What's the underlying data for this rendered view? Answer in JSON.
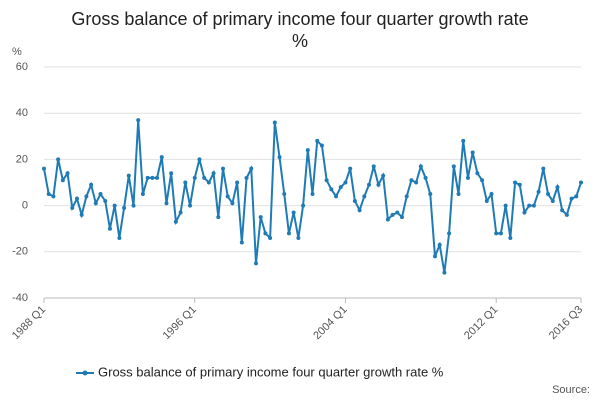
{
  "chart_data": {
    "type": "line",
    "title": "Gross balance of primary income four quarter growth rate",
    "subtitle": "%",
    "y_label": "%",
    "source": "Source:",
    "categories": [
      "1988 Q1",
      null,
      null,
      null,
      null,
      null,
      null,
      null,
      null,
      null,
      null,
      null,
      null,
      null,
      null,
      null,
      null,
      null,
      null,
      null,
      null,
      null,
      null,
      null,
      null,
      null,
      null,
      null,
      null,
      null,
      null,
      null,
      "1996 Q1",
      null,
      null,
      null,
      null,
      null,
      null,
      null,
      null,
      null,
      null,
      null,
      null,
      null,
      null,
      null,
      null,
      null,
      null,
      null,
      null,
      null,
      null,
      null,
      null,
      null,
      null,
      null,
      null,
      null,
      null,
      null,
      "2004 Q1",
      null,
      null,
      null,
      null,
      null,
      null,
      null,
      null,
      null,
      null,
      null,
      null,
      null,
      null,
      null,
      null,
      null,
      null,
      null,
      null,
      null,
      null,
      null,
      null,
      null,
      null,
      null,
      null,
      null,
      null,
      null,
      "2012 Q1",
      null,
      null,
      null,
      null,
      null,
      null,
      null,
      null,
      null,
      null,
      null,
      null,
      null,
      null,
      null,
      null,
      null,
      "2016 Q3"
    ],
    "series": [
      {
        "name": "Gross balance of primary income four quarter growth rate %",
        "color": "#1f7bb6",
        "values": [
          16,
          5,
          4,
          20,
          11,
          14,
          -1,
          3,
          -4,
          4,
          9,
          1,
          5,
          2,
          -10,
          0,
          -14,
          -1,
          13,
          0,
          37,
          5,
          12,
          12,
          12,
          21,
          1,
          14,
          -7,
          -3,
          10,
          0,
          12,
          20,
          12,
          10,
          14,
          -5,
          16,
          4,
          1,
          10,
          -16,
          12,
          16,
          -25,
          -5,
          -12,
          -14,
          36,
          21,
          5,
          -12,
          -3,
          -14,
          0,
          24,
          5,
          28,
          26,
          11,
          7,
          4,
          8,
          10,
          16,
          2,
          -2,
          4,
          9,
          17,
          9,
          13,
          -6,
          -4,
          -3,
          -5,
          4,
          11,
          10,
          17,
          12,
          5,
          -22,
          -17,
          -29,
          -12,
          17,
          5,
          28,
          12,
          23,
          14,
          11,
          2,
          5,
          -12,
          -12,
          0,
          -14,
          10,
          9,
          -3,
          0,
          0,
          6,
          16,
          5,
          2,
          8,
          -2,
          -4,
          3,
          4,
          10
        ]
      }
    ],
    "ylim": [
      -40,
      60
    ],
    "yticks": [
      -40,
      -20,
      0,
      20,
      40,
      60
    ],
    "grid": true
  }
}
